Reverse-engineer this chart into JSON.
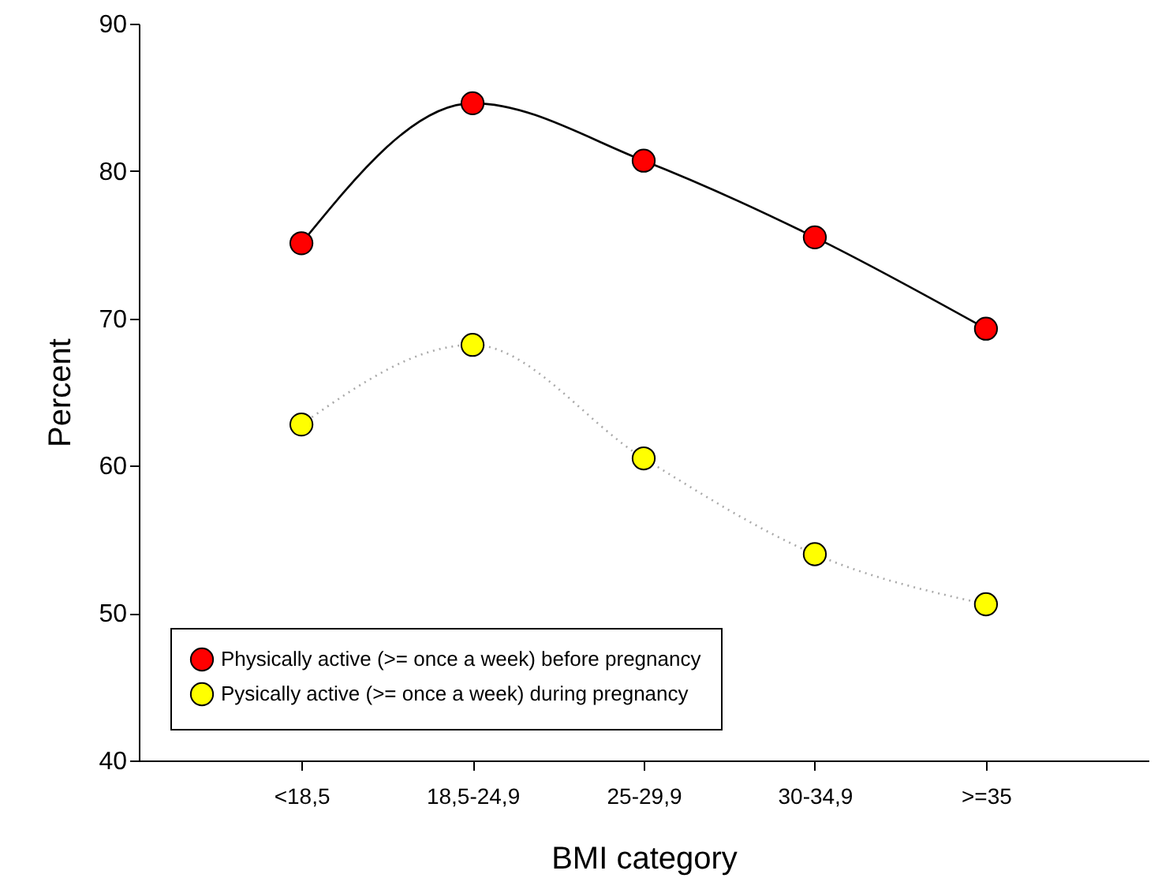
{
  "chart_data": {
    "type": "line",
    "xlabel": "BMI category",
    "ylabel": "Percent",
    "categories": [
      "<18,5",
      "18,5-24,9",
      "25-29,9",
      "30-34,9",
      ">=35"
    ],
    "series": [
      {
        "name": "Physically active (>= once a week) before pregnancy",
        "color": "#ff0000",
        "line_style": "solid",
        "values": [
          75.1,
          84.6,
          80.7,
          75.5,
          69.3
        ]
      },
      {
        "name": "Pysically active (>= once a week) during pregnancy",
        "color": "#ffff00",
        "line_style": "dotted",
        "values": [
          62.8,
          68.2,
          60.5,
          54.0,
          50.6
        ]
      }
    ],
    "ylim": [
      40,
      90
    ],
    "yticks": [
      40,
      50,
      60,
      70,
      80,
      90
    ],
    "grid": false,
    "legend": "bottom left",
    "marker": "circle"
  }
}
